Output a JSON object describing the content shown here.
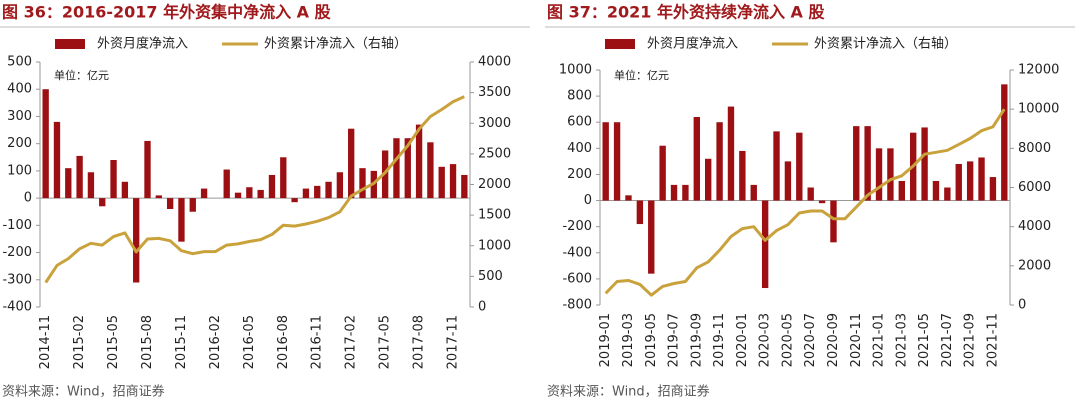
{
  "chart_data": [
    {
      "type": "bar",
      "title": "图 36：2016-2017 年外资集中净流入 A 股",
      "annotation": "单位：亿元",
      "source": "资料来源：Wind，招商证券",
      "categories": [
        "2014-11",
        null,
        null,
        "2015-02",
        null,
        null,
        "2015-05",
        null,
        null,
        "2015-08",
        null,
        null,
        "2015-11",
        null,
        null,
        "2016-02",
        null,
        null,
        "2016-05",
        null,
        null,
        "2016-08",
        null,
        null,
        "2016-11",
        null,
        null,
        "2017-02",
        null,
        null,
        "2017-05",
        null,
        null,
        "2017-08",
        null,
        null,
        "2017-11",
        null
      ],
      "series": [
        {
          "name": "外资月度净流入",
          "type": "bar",
          "color": "#9c1014",
          "values": [
            400,
            280,
            110,
            155,
            95,
            -30,
            140,
            60,
            -310,
            210,
            10,
            -40,
            -160,
            -50,
            35,
            0,
            105,
            20,
            40,
            30,
            85,
            150,
            -15,
            35,
            45,
            60,
            95,
            255,
            110,
            100,
            175,
            220,
            220,
            270,
            205,
            115,
            125,
            85
          ]
        },
        {
          "name": "外资累计净流入（右轴）",
          "type": "line",
          "axis": "y2",
          "color": "#c9a23c",
          "values": [
            400,
            680,
            790,
            950,
            1040,
            1010,
            1150,
            1210,
            900,
            1110,
            1120,
            1080,
            920,
            870,
            905,
            905,
            1010,
            1030,
            1070,
            1100,
            1185,
            1335,
            1320,
            1355,
            1400,
            1460,
            1555,
            1810,
            1920,
            2020,
            2195,
            2415,
            2635,
            2905,
            3110,
            3225,
            3350,
            3435
          ]
        }
      ],
      "ylim": [
        -400,
        500
      ],
      "yticks": [
        -400,
        -300,
        -200,
        -100,
        0,
        100,
        200,
        300,
        400,
        500
      ],
      "y2lim": [
        0,
        4000
      ],
      "y2ticks": [
        0,
        500,
        1000,
        1500,
        2000,
        2500,
        3000,
        3500,
        4000
      ]
    },
    {
      "type": "bar",
      "title": "图 37：2021 年外资持续净流入 A 股",
      "annotation": "单位：亿元",
      "source": "资料来源：Wind，招商证券",
      "categories": [
        "2019-01",
        null,
        "2019-03",
        null,
        "2019-05",
        null,
        "2019-07",
        null,
        "2019-09",
        null,
        "2019-11",
        null,
        "2020-01",
        null,
        "2020-03",
        null,
        "2020-05",
        null,
        "2020-07",
        null,
        "2020-09",
        null,
        "2020-11",
        null,
        "2021-01",
        null,
        "2021-03",
        null,
        "2021-05",
        null,
        "2021-07",
        null,
        "2021-09",
        null,
        "2021-11",
        null
      ],
      "series": [
        {
          "name": "外资月度净流入",
          "type": "bar",
          "color": "#9c1014",
          "values": [
            600,
            600,
            40,
            -180,
            -560,
            420,
            120,
            120,
            640,
            320,
            600,
            720,
            380,
            120,
            -670,
            530,
            300,
            520,
            100,
            -20,
            -320,
            0,
            570,
            570,
            400,
            400,
            150,
            520,
            560,
            150,
            100,
            280,
            300,
            330,
            180,
            890
          ]
        },
        {
          "name": "外资累计净流入（右轴）",
          "type": "line",
          "axis": "y2",
          "color": "#c9a23c",
          "values": [
            600,
            1200,
            1250,
            1050,
            500,
            950,
            1100,
            1200,
            1900,
            2200,
            2800,
            3500,
            3900,
            4000,
            3300,
            3800,
            4100,
            4700,
            4800,
            4800,
            4400,
            4400,
            5000,
            5600,
            6000,
            6400,
            6600,
            7100,
            7700,
            7800,
            7900,
            8200,
            8500,
            8900,
            9100,
            10000
          ]
        }
      ],
      "ylim": [
        -800,
        1000
      ],
      "yticks": [
        -800,
        -600,
        -400,
        -200,
        0,
        200,
        400,
        600,
        800,
        1000
      ],
      "y2lim": [
        0,
        12000
      ],
      "y2ticks": [
        0,
        2000,
        4000,
        6000,
        8000,
        10000,
        12000
      ]
    }
  ]
}
